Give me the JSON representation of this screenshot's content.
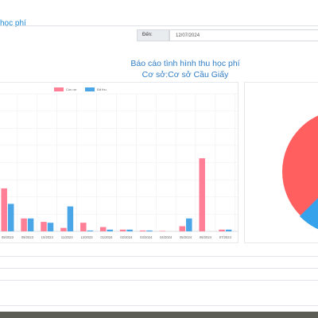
{
  "header": {
    "title": "học phí"
  },
  "filter": {
    "to_label": "Đến:",
    "to_value": "12/07/2024"
  },
  "report": {
    "title_line1": "Báo cáo tình hình thu học phí",
    "title_line2": "Cơ sở:Cơ sở Cầu Giấy"
  },
  "legend": {
    "series1": "Còn nợ",
    "series2": "Đã thu"
  },
  "colors": {
    "con_no": "#ff7f96",
    "da_thu": "#4aa6e6",
    "pie_main": "#ff5f5f",
    "pie_blue": "#36a2eb",
    "title_blue": "#2e7dc5"
  },
  "chart_data": {
    "type": "bar",
    "categories": [
      "08/2023",
      "09/2023",
      "10/2023",
      "11/2023",
      "12/2023",
      "01/2024",
      "02/2024",
      "03/2024",
      "04/2024",
      "05/2024",
      "06/2024",
      "07/2024"
    ],
    "series": [
      {
        "name": "Còn nợ",
        "values": [
          5.0,
          1.5,
          1.1,
          0.4,
          1.0,
          0.5,
          0.2,
          0.1,
          0.05,
          0.6,
          8.5,
          0.2
        ]
      },
      {
        "name": "Đã thu",
        "values": [
          3.2,
          1.5,
          1.0,
          2.9,
          0.1,
          0.2,
          0.2,
          0.1,
          0.0,
          1.5,
          0.0,
          0.2
        ]
      }
    ],
    "ylim": [
      0,
      16
    ],
    "grid": true,
    "legend_position": "top"
  }
}
